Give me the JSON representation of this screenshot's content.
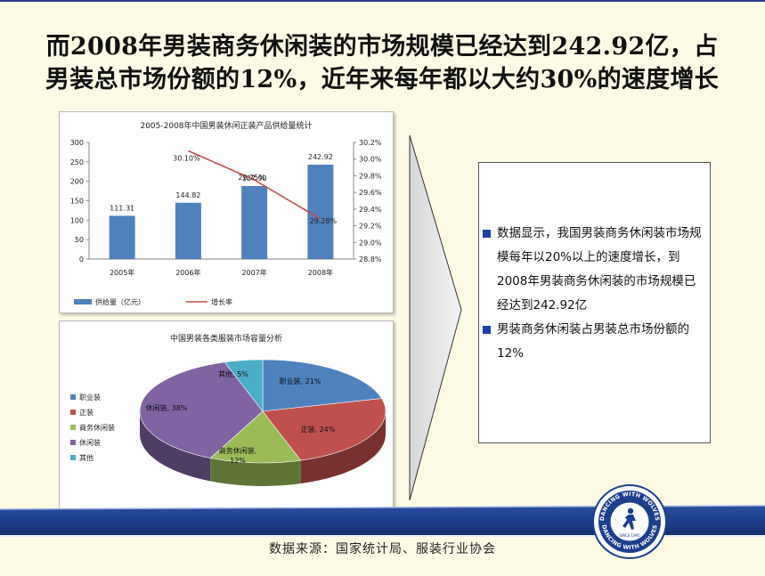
{
  "title": {
    "line1": "而2008年男装商务休闲装的市场规模已经达到242.92亿，占",
    "line2": "男装总市场份额的12%，近年来每年都以大约30%的速度增长"
  },
  "chart_data": [
    {
      "type": "bar",
      "title": "2005-2008年中国男装休闲正装产品供给量统计",
      "categories": [
        "2005年",
        "2006年",
        "2007年",
        "2008年"
      ],
      "series": [
        {
          "name": "供给量（亿元）",
          "type": "bar",
          "axis": "left",
          "color": "#4f81bd",
          "values": [
            111.31,
            144.82,
            187.9,
            242.92
          ],
          "labels": [
            "111.31",
            "144.82",
            "187.90",
            "242.92"
          ]
        },
        {
          "name": "增长率",
          "type": "line",
          "axis": "right",
          "color": "#c0504d",
          "values": [
            null,
            30.1,
            29.75,
            29.28
          ],
          "labels": [
            "",
            "30.10%",
            "29.75%",
            "29.28%"
          ]
        }
      ],
      "ylim": [
        0,
        300
      ],
      "yticks": [
        "300",
        "250",
        "200",
        "150",
        "100",
        "50",
        "0"
      ],
      "y2lim": [
        28.8,
        30.2
      ],
      "y2ticks": [
        "30.2%",
        "30.0%",
        "29.8%",
        "29.6%",
        "29.4%",
        "29.2%",
        "29.0%",
        "28.8%"
      ],
      "grid": false,
      "legend": "bottom"
    },
    {
      "type": "pie",
      "title": "中国男装各类服装市场容量分析",
      "slices": [
        {
          "name": "职业装",
          "value": 21,
          "label": "职业装, 21%",
          "color": "#4f81bd"
        },
        {
          "name": "正装",
          "value": 24,
          "label": "正装, 24%",
          "color": "#c0504d"
        },
        {
          "name": "商务休闲装",
          "value": 12,
          "label": "商务休闲装,",
          "label2": "12%",
          "color": "#9bbb59"
        },
        {
          "name": "休闲装",
          "value": 38,
          "label": "休闲装, 38%",
          "color": "#8064a2"
        },
        {
          "name": "其他",
          "value": 5,
          "label": "其他, 5%",
          "color": "#4bacc6"
        }
      ],
      "legend": "left",
      "style": "3d"
    }
  ],
  "summary": {
    "items": [
      "数据显示，我国男装商务休闲装市场规模每年以20%以上的速度增长，到2008年男装商务休闲装的市场规模已经达到242.92亿",
      "男装商务休闲装占男装总市场份额的12%"
    ]
  },
  "footer": {
    "source": "数据来源：国家统计局、服装行业协会",
    "logo_top": "DANCING WITH WOLVES",
    "logo_bottom": "DANCING WITH WOLVES",
    "logo_since": "SINCE 1995"
  },
  "colors": {
    "band": "#1c3f8c",
    "accent": "#1d3fa8"
  }
}
